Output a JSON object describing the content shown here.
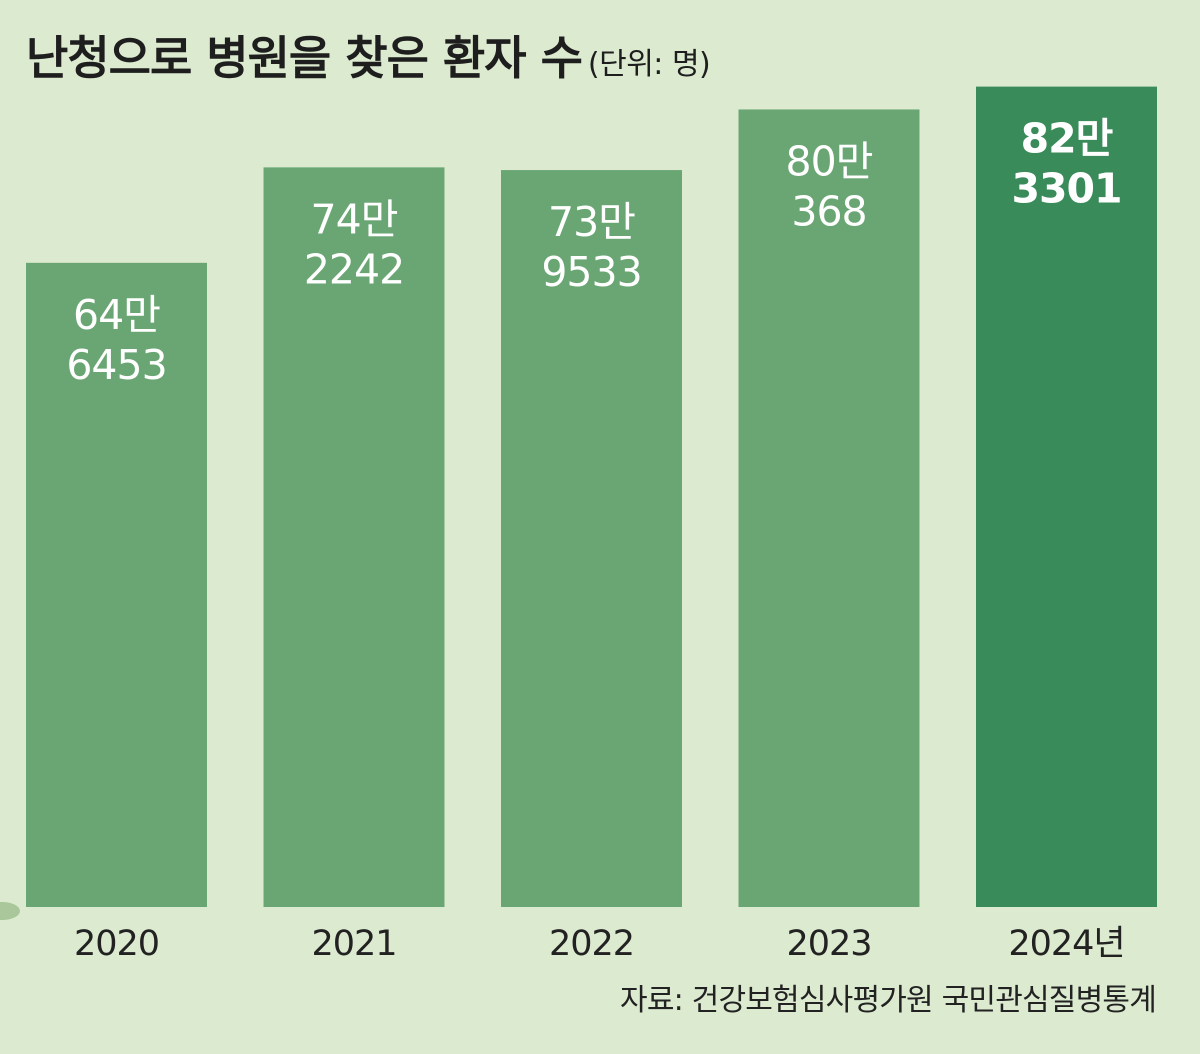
{
  "chart_data": {
    "type": "bar",
    "title": "난청으로 병원을 찾은 환자 수",
    "unit_note": "(단위: 명)",
    "categories": [
      "2020",
      "2021",
      "2022",
      "2023",
      "2024년"
    ],
    "values": [
      646453,
      742242,
      739533,
      800368,
      823301
    ],
    "value_labels": [
      [
        "64만",
        "6453"
      ],
      [
        "74만",
        "2242"
      ],
      [
        "73만",
        "9533"
      ],
      [
        "80만",
        "368"
      ],
      [
        "82만",
        "3301"
      ]
    ],
    "ylim": [
      0,
      850000
    ],
    "highlight_index": 4,
    "grid": false,
    "source": "자료: 건강보험심사평가원 국민관심질병통계"
  },
  "colors": {
    "background": "#dcebd0",
    "bar": "#6aa673",
    "bar_highlight": "#3a8b5a",
    "label_text": "#ffffff",
    "axis_text": "#222222"
  }
}
